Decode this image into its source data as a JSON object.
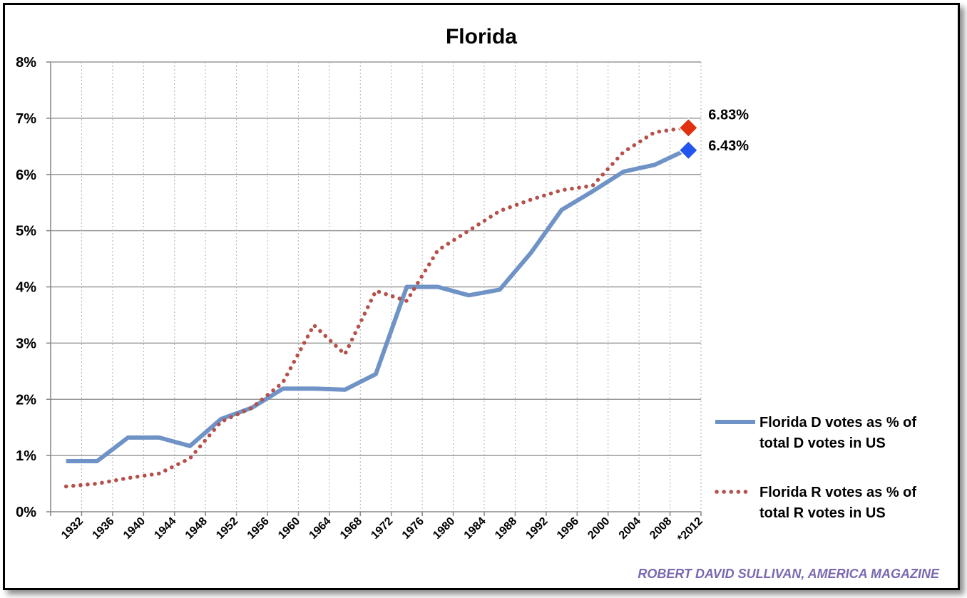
{
  "chart_data": {
    "type": "line",
    "title": "Florida",
    "xlabel": "",
    "ylabel": "",
    "ylim": [
      0,
      8
    ],
    "ytick_labels": [
      "0%",
      "1%",
      "2%",
      "3%",
      "4%",
      "5%",
      "6%",
      "7%",
      "8%"
    ],
    "x_tick_labels": [
      "1932",
      "1936",
      "1940",
      "1944",
      "1948",
      "1952",
      "1956",
      "1960",
      "1964",
      "1968",
      "1972",
      "1976",
      "1980",
      "1984",
      "1988",
      "1992",
      "1996",
      "2000",
      "2004",
      "2008",
      "*2012"
    ],
    "grid": true,
    "legend_position": "right",
    "series": [
      {
        "name": "Florida D votes as % of total D votes in US",
        "legend_lines": [
          "Florida D votes as % of",
          "total D votes in US"
        ],
        "style": "solid",
        "color": "#6f93c6",
        "values": [
          0.9,
          0.9,
          1.32,
          1.32,
          1.17,
          1.65,
          1.85,
          2.19,
          2.19,
          2.17,
          2.45,
          4.0,
          4.0,
          3.85,
          3.95,
          4.6,
          5.37,
          5.7,
          6.05,
          6.17,
          6.43
        ]
      },
      {
        "name": "Florida R votes as % of total R votes in US",
        "legend_lines": [
          "Florida R votes as % of",
          "total R votes in US"
        ],
        "style": "dotted",
        "color": "#b5504a",
        "values": [
          0.45,
          0.5,
          0.6,
          0.68,
          0.95,
          1.6,
          1.85,
          2.3,
          3.32,
          2.8,
          3.93,
          3.75,
          4.65,
          5.0,
          5.35,
          5.55,
          5.72,
          5.8,
          6.4,
          6.75,
          6.83
        ]
      }
    ],
    "markers": [
      {
        "series": 1,
        "label": "6.83%",
        "value": 6.83,
        "color": "#e03010"
      },
      {
        "series": 0,
        "label": "6.43%",
        "value": 6.43,
        "color": "#2255ee"
      }
    ],
    "credit": "ROBERT DAVID SULLIVAN, AMERICA MAGAZINE"
  }
}
